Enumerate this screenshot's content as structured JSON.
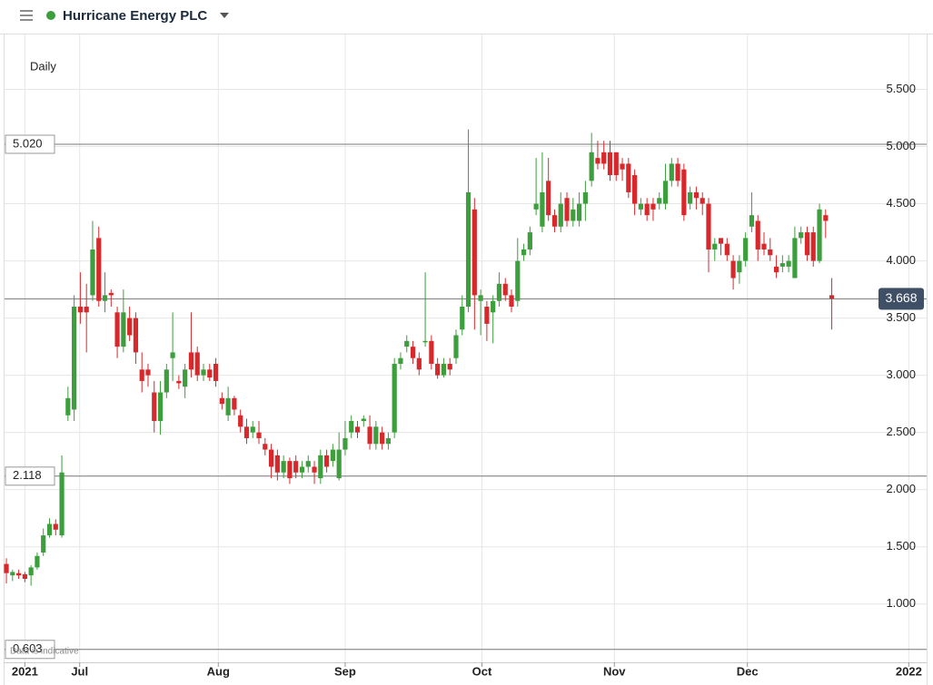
{
  "header": {
    "title": "Hurricane Energy PLC"
  },
  "chart_data": {
    "type": "candlestick",
    "interval": "Daily",
    "note": "Data is indicative",
    "up_color": "#3c9e3c",
    "down_color": "#d9282b",
    "grid": true,
    "open": [
      1.35,
      1.25,
      1.27,
      1.26,
      1.25,
      1.32,
      1.45,
      1.6,
      1.7,
      1.6,
      2.65,
      2.7,
      3.6,
      3.6,
      3.7,
      4.2,
      3.65,
      3.72,
      3.55,
      3.25,
      3.5,
      3.5,
      3.05,
      3.05,
      2.85,
      2.6,
      2.85,
      3.15,
      2.95,
      2.9,
      3.2,
      3.2,
      3.0,
      3.05,
      3.1,
      2.8,
      2.65,
      2.8,
      2.65,
      2.55,
      2.5,
      2.5,
      2.4,
      2.35,
      2.3,
      2.15,
      2.25,
      2.25,
      2.15,
      2.2,
      2.2,
      2.1,
      2.3,
      2.25,
      2.1,
      2.35,
      2.5,
      2.55,
      2.6,
      2.55,
      2.4,
      2.5,
      2.4,
      2.5,
      3.1,
      3.25,
      3.25,
      3.15,
      3.3,
      3.3,
      3.1,
      3.0,
      3.1,
      3.15,
      3.4,
      3.6,
      4.45,
      3.65,
      3.6,
      3.55,
      3.65,
      3.8,
      3.7,
      3.65,
      4.05,
      4.1,
      4.45,
      4.3,
      4.7,
      4.4,
      4.3,
      4.55,
      4.35,
      4.35,
      4.5,
      4.7,
      4.9,
      4.95,
      4.95,
      4.95,
      4.85,
      4.85,
      4.75,
      4.45,
      4.5,
      4.5,
      4.5,
      4.5,
      4.7,
      4.85,
      4.8,
      4.5,
      4.6,
      4.55,
      4.5,
      4.1,
      4.2,
      4.15,
      4.0,
      3.9,
      4.0,
      4.3,
      4.35,
      4.15,
      4.1,
      3.95,
      3.95,
      3.95,
      3.85,
      4.2,
      4.25,
      4.25,
      4.0,
      4.4,
      3.7
    ],
    "high": [
      1.4,
      1.3,
      1.3,
      1.28,
      1.34,
      1.45,
      1.66,
      1.75,
      1.74,
      2.3,
      2.9,
      3.7,
      3.9,
      3.8,
      4.35,
      4.3,
      3.9,
      3.75,
      3.6,
      3.75,
      3.6,
      3.55,
      3.2,
      3.1,
      2.95,
      2.95,
      3.1,
      3.55,
      3.0,
      3.1,
      3.55,
      3.25,
      3.1,
      3.1,
      3.15,
      2.85,
      2.9,
      2.82,
      2.7,
      2.62,
      2.6,
      2.6,
      2.45,
      2.4,
      2.35,
      2.3,
      2.28,
      2.3,
      2.25,
      2.3,
      2.25,
      2.35,
      2.35,
      2.4,
      2.5,
      2.6,
      2.65,
      2.6,
      2.65,
      2.65,
      2.6,
      2.55,
      2.5,
      3.15,
      3.2,
      3.35,
      3.3,
      3.2,
      3.9,
      3.35,
      3.15,
      3.15,
      3.15,
      3.4,
      3.7,
      5.15,
      4.55,
      3.75,
      3.65,
      3.7,
      3.9,
      3.85,
      3.75,
      4.2,
      4.15,
      4.3,
      4.9,
      4.95,
      4.9,
      4.45,
      4.6,
      4.6,
      4.55,
      4.6,
      4.7,
      5.12,
      5.05,
      5.05,
      5.05,
      4.95,
      4.9,
      4.9,
      4.8,
      4.55,
      4.55,
      4.55,
      4.6,
      4.85,
      4.9,
      4.9,
      4.85,
      4.65,
      4.65,
      4.6,
      4.55,
      4.2,
      4.2,
      4.2,
      4.05,
      4.05,
      4.25,
      4.6,
      4.4,
      4.25,
      4.2,
      4.05,
      4.05,
      4.05,
      4.3,
      4.3,
      4.3,
      4.3,
      4.5,
      4.45,
      3.85
    ],
    "low": [
      1.18,
      1.2,
      1.22,
      1.19,
      1.16,
      1.3,
      1.42,
      1.58,
      1.6,
      1.58,
      2.6,
      2.6,
      3.45,
      3.2,
      3.65,
      3.6,
      3.55,
      3.6,
      3.15,
      3.2,
      3.3,
      3.1,
      2.85,
      2.9,
      2.5,
      2.48,
      2.8,
      2.95,
      2.88,
      2.8,
      2.98,
      2.95,
      2.95,
      2.95,
      2.9,
      2.7,
      2.6,
      2.65,
      2.5,
      2.4,
      2.45,
      2.4,
      2.3,
      2.1,
      2.08,
      2.1,
      2.05,
      2.1,
      2.1,
      2.15,
      2.05,
      2.05,
      2.15,
      2.2,
      2.08,
      2.3,
      2.45,
      2.45,
      2.55,
      2.35,
      2.35,
      2.35,
      2.35,
      2.45,
      3.05,
      3.2,
      3.1,
      3.0,
      3.25,
      3.05,
      2.97,
      2.98,
      3.0,
      3.1,
      3.35,
      3.55,
      3.4,
      3.35,
      3.3,
      3.28,
      3.6,
      3.65,
      3.55,
      3.6,
      4.0,
      4.05,
      4.4,
      4.25,
      4.35,
      4.25,
      4.25,
      4.3,
      4.3,
      4.3,
      4.35,
      4.65,
      4.8,
      4.8,
      4.7,
      4.7,
      4.7,
      4.55,
      4.4,
      4.4,
      4.35,
      4.35,
      4.45,
      4.45,
      4.65,
      4.65,
      4.35,
      4.45,
      4.45,
      4.4,
      3.9,
      4.0,
      4.05,
      4.0,
      3.75,
      3.8,
      3.95,
      4.25,
      4.0,
      4.05,
      4.0,
      3.85,
      3.9,
      3.9,
      3.85,
      4.15,
      4.0,
      3.95,
      3.98,
      4.2,
      3.4
    ],
    "close": [
      1.27,
      1.28,
      1.25,
      1.22,
      1.32,
      1.42,
      1.6,
      1.7,
      1.65,
      2.15,
      2.8,
      3.6,
      3.55,
      3.55,
      4.1,
      3.65,
      3.7,
      3.7,
      3.25,
      3.55,
      3.35,
      3.2,
      2.95,
      3.0,
      2.6,
      2.85,
      3.05,
      3.2,
      2.93,
      3.05,
      3.05,
      3.0,
      3.05,
      2.98,
      2.95,
      2.75,
      2.8,
      2.7,
      2.55,
      2.45,
      2.55,
      2.45,
      2.35,
      2.2,
      2.15,
      2.25,
      2.1,
      2.15,
      2.2,
      2.25,
      2.15,
      2.3,
      2.2,
      2.35,
      2.35,
      2.45,
      2.6,
      2.5,
      2.62,
      2.4,
      2.55,
      2.4,
      2.45,
      3.1,
      3.15,
      3.3,
      3.15,
      3.05,
      3.3,
      3.1,
      3.0,
      3.1,
      3.05,
      3.35,
      3.6,
      4.6,
      3.7,
      3.7,
      3.45,
      3.65,
      3.8,
      3.7,
      3.6,
      4.0,
      4.1,
      4.25,
      4.5,
      4.6,
      4.4,
      4.3,
      4.5,
      4.35,
      4.45,
      4.5,
      4.6,
      4.95,
      4.85,
      4.85,
      4.75,
      4.75,
      4.8,
      4.6,
      4.5,
      4.5,
      4.4,
      4.45,
      4.55,
      4.7,
      4.85,
      4.7,
      4.4,
      4.6,
      4.55,
      4.5,
      4.1,
      4.15,
      4.15,
      4.05,
      3.85,
      4.0,
      4.2,
      4.4,
      4.1,
      4.1,
      4.05,
      3.9,
      3.98,
      4.0,
      4.2,
      4.25,
      4.05,
      4.0,
      4.45,
      4.35,
      3.67
    ],
    "ylim": [
      0.49,
      5.98
    ],
    "yticks": [
      {
        "value": 1,
        "label": "1.000"
      },
      {
        "value": 1.5,
        "label": "1.500"
      },
      {
        "value": 2,
        "label": "2.000"
      },
      {
        "value": 2.5,
        "label": "2.500"
      },
      {
        "value": 3,
        "label": "3.000"
      },
      {
        "value": 3.5,
        "label": "3.500"
      },
      {
        "value": 4,
        "label": "4.000"
      },
      {
        "value": 4.5,
        "label": "4.500"
      },
      {
        "value": 5,
        "label": "5.000"
      },
      {
        "value": 5.5,
        "label": "5.500"
      }
    ],
    "xlim": [
      -0.3,
      149.4
    ],
    "xticks": [
      {
        "value": 3,
        "label": "2021"
      },
      {
        "value": 11.9,
        "label": "Jul"
      },
      {
        "value": 34.4,
        "label": "Aug"
      },
      {
        "value": 55,
        "label": "Sep"
      },
      {
        "value": 77.2,
        "label": "Oct"
      },
      {
        "value": 98.7,
        "label": "Nov"
      },
      {
        "value": 120.3,
        "label": "Dec"
      },
      {
        "value": 146.5,
        "label": "2022"
      }
    ],
    "levels": [
      {
        "value": 5.02,
        "label": "5.020",
        "side": "left"
      },
      {
        "value": 3.668,
        "label": "3.668",
        "side": "right"
      },
      {
        "value": 2.118,
        "label": "2.118",
        "side": "left"
      },
      {
        "value": 0.603,
        "label": "0.603",
        "side": "left"
      }
    ]
  }
}
